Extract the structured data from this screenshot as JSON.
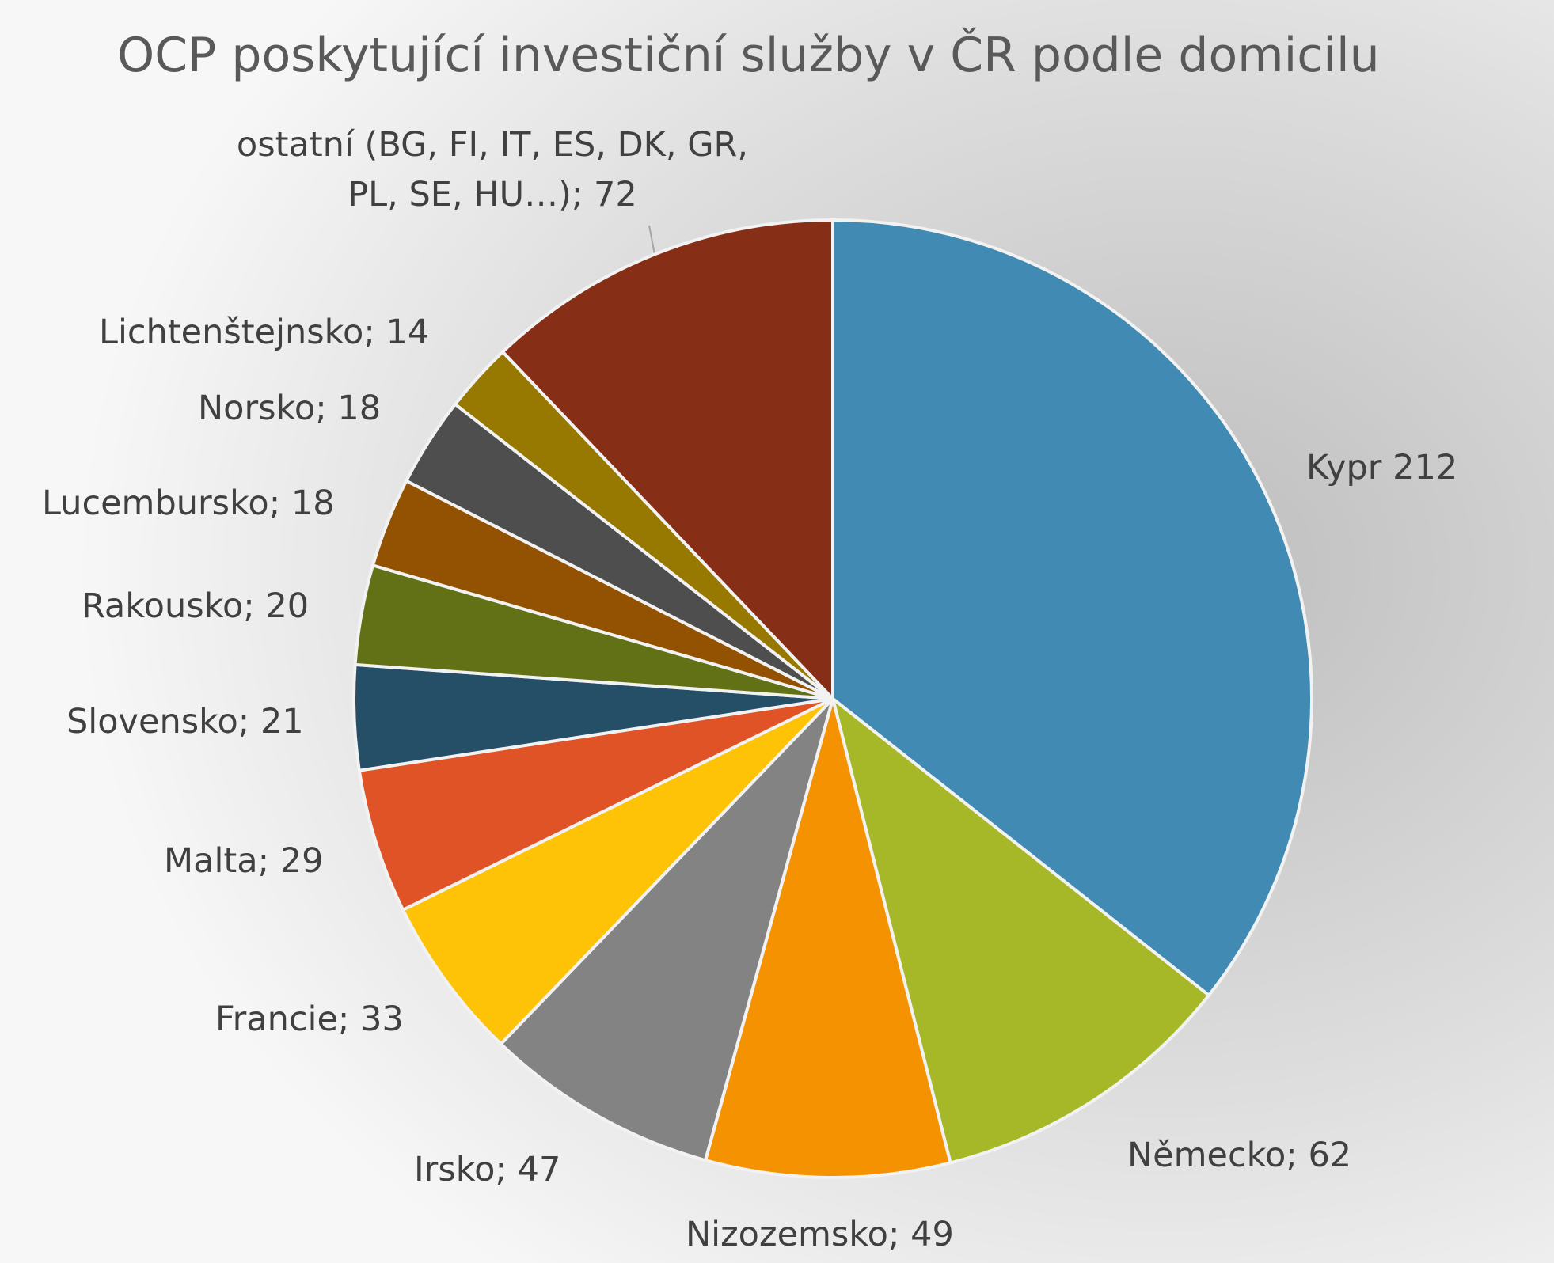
{
  "chart_data": {
    "type": "pie",
    "title": "OCP poskytující investiční služby v ČR podle domicilu",
    "values": [
      212,
      62,
      49,
      47,
      33,
      29,
      21,
      20,
      18,
      18,
      14,
      72
    ],
    "value_labels": [
      "Kypr 212",
      "Německo; 62",
      "Nizozemsko; 49",
      "Irsko; 47",
      "Francie; 33",
      "Malta;  29",
      "Slovensko; 21",
      "Rakousko; 20",
      "Lucembursko; 18",
      "Norsko; 18",
      "Lichtenštejnsko; 14",
      "ostatní (BG, FI, IT, ES, DK, GR,\nPL, SE, HU…); 72"
    ],
    "colors": [
      "#418ab3",
      "#a6b727",
      "#f59201",
      "#838383",
      "#fec306",
      "#df5327",
      "#254e67",
      "#637116",
      "#935201",
      "#4e4e4e",
      "#977800",
      "#862e16"
    ]
  }
}
